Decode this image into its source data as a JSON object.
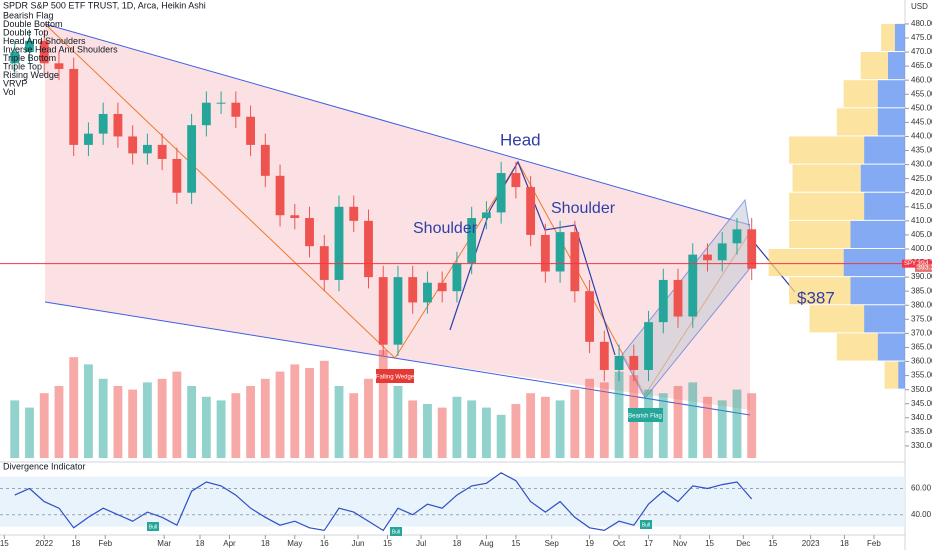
{
  "chart_data": {
    "type": "candlestick",
    "title": "SPDR S&P 500 ETF TRUST, 1D, Arca, Heikin Ashi",
    "indicators": [
      "Bearish Flag",
      "Double Bottom",
      "Double Top",
      "Head And Shoulders",
      "Inverse Head And Shoulders",
      "Triple Bottom",
      "Triple Top",
      "Rising Wedge",
      "VRVP",
      "Vol"
    ],
    "currency": "USD",
    "symbol": "SPY",
    "last_price": {
      "value": 394.79,
      "label": "394.79"
    },
    "second_price": {
      "value": 393.28,
      "label": "393.28"
    },
    "annotations": {
      "head": "Head",
      "left_shoulder": "Shoulder",
      "right_shoulder": "Shoulder",
      "target": "$387",
      "falling_wedge": "Falling Wedge",
      "bearish_flag": "Bearish Flag",
      "bull_1": "Bull",
      "bull_2": "Bull",
      "bull_3": "Bull"
    },
    "up_color": "#26a69a",
    "down_color": "#ef5350",
    "x": [
      1,
      2,
      3,
      4,
      5,
      6,
      7,
      8,
      9,
      10,
      11,
      12,
      13,
      14,
      15,
      16,
      17,
      18,
      19,
      20,
      21,
      22,
      23,
      24,
      25,
      26,
      27,
      28,
      29,
      30,
      31,
      32,
      33,
      34,
      35,
      36,
      37,
      38,
      39,
      40,
      41,
      42,
      43,
      44,
      45,
      46,
      47,
      48,
      49,
      50,
      51
    ],
    "open": [
      466,
      470,
      474,
      466,
      464,
      437,
      441,
      448,
      440,
      434,
      437,
      432,
      420,
      444,
      452,
      452,
      447,
      437,
      426,
      412,
      411,
      401,
      389,
      415,
      410,
      390,
      366,
      390,
      381,
      388,
      385,
      395,
      411,
      413,
      427,
      422,
      405,
      392,
      406,
      385,
      367,
      357,
      362,
      357,
      374,
      389,
      376,
      398,
      396,
      402,
      407
    ],
    "high": [
      474,
      478,
      478,
      470,
      468,
      445,
      452,
      452,
      444,
      441,
      441,
      436,
      448,
      456,
      456,
      456,
      451,
      441,
      430,
      416,
      415,
      405,
      419,
      419,
      414,
      394,
      394,
      394,
      392,
      392,
      399,
      415,
      417,
      431,
      431,
      426,
      409,
      410,
      410,
      389,
      371,
      366,
      366,
      378,
      393,
      393,
      402,
      402,
      406,
      411,
      411
    ],
    "low": [
      462,
      466,
      462,
      460,
      433,
      433,
      437,
      436,
      430,
      430,
      428,
      416,
      416,
      440,
      448,
      443,
      433,
      422,
      408,
      407,
      397,
      385,
      385,
      406,
      386,
      362,
      362,
      377,
      377,
      381,
      381,
      391,
      407,
      409,
      418,
      401,
      388,
      388,
      381,
      363,
      353,
      353,
      353,
      353,
      370,
      372,
      372,
      392,
      392,
      398,
      389
    ],
    "close": [
      470,
      474,
      466,
      464,
      437,
      441,
      448,
      440,
      434,
      437,
      432,
      420,
      444,
      452,
      452,
      447,
      437,
      426,
      412,
      411,
      401,
      389,
      415,
      410,
      390,
      366,
      390,
      381,
      388,
      385,
      395,
      411,
      413,
      427,
      422,
      405,
      392,
      406,
      385,
      367,
      357,
      362,
      357,
      374,
      389,
      376,
      398,
      396,
      402,
      407,
      393
    ],
    "volume": [
      80,
      70,
      90,
      100,
      140,
      130,
      110,
      100,
      95,
      105,
      110,
      120,
      100,
      85,
      80,
      90,
      100,
      110,
      120,
      130,
      125,
      135,
      100,
      90,
      110,
      150,
      100,
      80,
      75,
      70,
      85,
      80,
      70,
      60,
      75,
      90,
      85,
      80,
      95,
      110,
      105,
      120,
      115,
      95,
      90,
      100,
      105,
      85,
      80,
      95,
      90
    ],
    "volume_lim": [
      0,
      250
    ],
    "xlim": [
      0,
      61.4
    ],
    "xticks": [
      {
        "value": 0.29,
        "label": "15"
      },
      {
        "value": 3,
        "label": "2022"
      },
      {
        "value": 5.14,
        "label": "18"
      },
      {
        "value": 7.14,
        "label": "Feb"
      },
      {
        "value": 11.14,
        "label": "Mar"
      },
      {
        "value": 13.57,
        "label": "18"
      },
      {
        "value": 15.57,
        "label": "Apr"
      },
      {
        "value": 18,
        "label": "18"
      },
      {
        "value": 20,
        "label": "May"
      },
      {
        "value": 22,
        "label": "16"
      },
      {
        "value": 24.29,
        "label": "Jun"
      },
      {
        "value": 26.29,
        "label": "15"
      },
      {
        "value": 28.57,
        "label": "Jul"
      },
      {
        "value": 31,
        "label": "18"
      },
      {
        "value": 33,
        "label": "Aug"
      },
      {
        "value": 35,
        "label": "15"
      },
      {
        "value": 37.43,
        "label": "Sep"
      },
      {
        "value": 40,
        "label": "19"
      },
      {
        "value": 42,
        "label": "Oct"
      },
      {
        "value": 44,
        "label": "17"
      },
      {
        "value": 46.14,
        "label": "Nov"
      },
      {
        "value": 48.14,
        "label": "15"
      },
      {
        "value": 50.43,
        "label": "Dec"
      },
      {
        "value": 52.43,
        "label": "15"
      },
      {
        "value": 55,
        "label": "2023"
      },
      {
        "value": 57.29,
        "label": "18"
      },
      {
        "value": 59.29,
        "label": "Feb"
      }
    ],
    "ylim": [
      325,
      488.5
    ],
    "yticks": [
      {
        "value": 330,
        "label": "330.00"
      },
      {
        "value": 335,
        "label": "335.00"
      },
      {
        "value": 340,
        "label": "340.00"
      },
      {
        "value": 345,
        "label": "345.00"
      },
      {
        "value": 350,
        "label": "350.00"
      },
      {
        "value": 355,
        "label": "355.00"
      },
      {
        "value": 360,
        "label": "360.00"
      },
      {
        "value": 365,
        "label": "365.00"
      },
      {
        "value": 370,
        "label": "370.00"
      },
      {
        "value": 375,
        "label": "375.00"
      },
      {
        "value": 380,
        "label": "380.00"
      },
      {
        "value": 385,
        "label": "385.00"
      },
      {
        "value": 390,
        "label": "390.00"
      },
      {
        "value": 395,
        "label": "395.00"
      },
      {
        "value": 400,
        "label": "400.00"
      },
      {
        "value": 405,
        "label": "405.00"
      },
      {
        "value": 410,
        "label": "410.00"
      },
      {
        "value": 415,
        "label": "415.00"
      },
      {
        "value": 420,
        "label": "420.00"
      },
      {
        "value": 425,
        "label": "425.00"
      },
      {
        "value": 430,
        "label": "430.00"
      },
      {
        "value": 435,
        "label": "435.00"
      },
      {
        "value": 440,
        "label": "440.00"
      },
      {
        "value": 445,
        "label": "445.00"
      },
      {
        "value": 450,
        "label": "450.00"
      },
      {
        "value": 455,
        "label": "455.00"
      },
      {
        "value": 460,
        "label": "460.00"
      },
      {
        "value": 465,
        "label": "465.00"
      },
      {
        "value": 470,
        "label": "470.00"
      },
      {
        "value": 475,
        "label": "475.00"
      },
      {
        "value": 480,
        "label": "480.00"
      }
    ],
    "volume_profile": {
      "bins": [
        350,
        360,
        370,
        380,
        390,
        400,
        410,
        420,
        430,
        440,
        450,
        460,
        470,
        480
      ],
      "up": [
        20,
        60,
        80,
        90,
        110,
        90,
        110,
        100,
        110,
        60,
        50,
        40,
        20
      ],
      "down": [
        10,
        40,
        60,
        80,
        90,
        80,
        60,
        65,
        60,
        40,
        40,
        25,
        15
      ],
      "up_color": "#fbd980",
      "down_color": "#5b8ef0",
      "xlim": [
        0,
        220
      ]
    },
    "oscillator": {
      "name": "Divergence Indicator",
      "color": "#2f4fc4",
      "ylim": [
        26,
        78
      ],
      "yticks": [
        {
          "value": 40,
          "label": "40.00"
        },
        {
          "value": 60,
          "label": "60.00"
        }
      ],
      "values": [
        55,
        60,
        50,
        45,
        30,
        38,
        45,
        40,
        35,
        42,
        38,
        32,
        58,
        65,
        62,
        55,
        45,
        38,
        32,
        35,
        30,
        28,
        45,
        42,
        35,
        28,
        45,
        40,
        48,
        45,
        55,
        62,
        64,
        72,
        66,
        50,
        42,
        50,
        38,
        30,
        28,
        35,
        32,
        48,
        58,
        50,
        62,
        60,
        63,
        65,
        52
      ]
    }
  }
}
